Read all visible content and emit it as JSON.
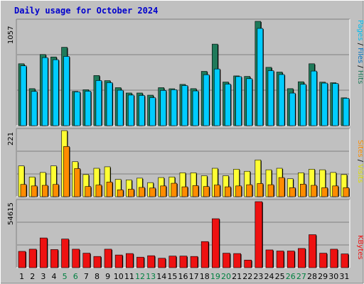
{
  "title": "Daily usage for October 2024",
  "colors": {
    "hits": "#1f7a5a",
    "files": "#00ccff",
    "pages": "#00ccff",
    "visits": "#ffff33",
    "sites": "#ff8c00",
    "kbytes": "#ee1111",
    "weekend_label": "#008040",
    "weekday_label": "#000000"
  },
  "chart_data": [
    {
      "type": "bar",
      "name": "hits-files-pages",
      "ymax_label": "1057",
      "ylim": [
        0,
        1057
      ],
      "categories": [
        "1",
        "2",
        "3",
        "4",
        "5",
        "6",
        "7",
        "8",
        "9",
        "10",
        "11",
        "12",
        "13",
        "14",
        "15",
        "16",
        "17",
        "18",
        "19",
        "20",
        "21",
        "22",
        "23",
        "24",
        "25",
        "26",
        "27",
        "28",
        "29",
        "30",
        "31"
      ],
      "legend": [
        {
          "key": "pages",
          "label": "Pages"
        },
        {
          "key": "sep1",
          "label": " / "
        },
        {
          "key": "files",
          "label": "Files"
        },
        {
          "key": "sep2",
          "label": " / "
        },
        {
          "key": "hits",
          "label": "Hits"
        }
      ],
      "series": [
        {
          "name": "Hits",
          "color_key": "hits",
          "values": [
            627,
            375,
            721,
            696,
            794,
            347,
            364,
            508,
            456,
            385,
            331,
            331,
            309,
            385,
            374,
            418,
            375,
            550,
            826,
            442,
            504,
            499,
            1057,
            591,
            543,
            375,
            445,
            627,
            441,
            435,
            282
          ]
        },
        {
          "name": "Files",
          "color_key": "files",
          "values": [
            606,
            347,
            689,
            668,
            701,
            342,
            349,
            457,
            436,
            359,
            310,
            306,
            284,
            357,
            364,
            406,
            352,
            516,
            574,
            421,
            497,
            476,
            985,
            557,
            518,
            330,
            419,
            553,
            431,
            427,
            277
          ]
        }
      ]
    },
    {
      "type": "bar",
      "name": "visits-sites",
      "ymax_label": "221",
      "ylim": [
        0,
        221
      ],
      "categories": [
        "1",
        "2",
        "3",
        "4",
        "5",
        "6",
        "7",
        "8",
        "9",
        "10",
        "11",
        "12",
        "13",
        "14",
        "15",
        "16",
        "17",
        "18",
        "19",
        "20",
        "21",
        "22",
        "23",
        "24",
        "25",
        "26",
        "27",
        "28",
        "29",
        "30",
        "31"
      ],
      "legend": [
        {
          "key": "sites",
          "label": "Sites"
        },
        {
          "key": "sep1",
          "label": " / "
        },
        {
          "key": "visits",
          "label": "Visits"
        }
      ],
      "series": [
        {
          "name": "Visits",
          "color_key": "visits",
          "values": [
            103,
            66,
            81,
            103,
            221,
            117,
            74,
            95,
            100,
            58,
            56,
            62,
            47,
            64,
            66,
            80,
            80,
            70,
            95,
            70,
            92,
            85,
            123,
            90,
            95,
            60,
            80,
            92,
            90,
            81,
            74
          ]
        },
        {
          "name": "Sites",
          "color_key": "sites",
          "values": [
            41,
            36,
            38,
            41,
            168,
            94,
            34,
            39,
            49,
            23,
            25,
            31,
            29,
            36,
            45,
            33,
            37,
            34,
            39,
            33,
            36,
            40,
            44,
            40,
            64,
            30,
            42,
            38,
            30,
            36,
            30
          ]
        }
      ]
    },
    {
      "type": "bar",
      "name": "kbytes",
      "ymax_label": "54615",
      "ylim": [
        0,
        54615
      ],
      "categories": [
        "1",
        "2",
        "3",
        "4",
        "5",
        "6",
        "7",
        "8",
        "9",
        "10",
        "11",
        "12",
        "13",
        "14",
        "15",
        "16",
        "17",
        "18",
        "19",
        "20",
        "21",
        "22",
        "23",
        "24",
        "25",
        "26",
        "27",
        "28",
        "29",
        "30",
        "31"
      ],
      "legend": [
        {
          "key": "kbytes",
          "label": "KBytes"
        }
      ],
      "series": [
        {
          "name": "KBytes",
          "color_key": "kbytes",
          "values": [
            13500,
            15300,
            24600,
            15000,
            23700,
            15300,
            12000,
            9300,
            15300,
            10500,
            11700,
            8700,
            9900,
            7800,
            9600,
            9600,
            9300,
            21600,
            40500,
            12000,
            11700,
            6300,
            54615,
            14700,
            13800,
            13800,
            15900,
            27300,
            12000,
            15300,
            11400
          ]
        }
      ]
    }
  ],
  "weekend_days": [
    "5",
    "6",
    "12",
    "13",
    "19",
    "20",
    "26",
    "27"
  ]
}
